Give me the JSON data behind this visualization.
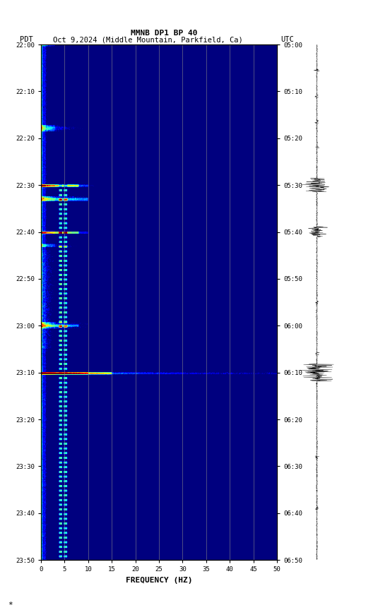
{
  "title_line1": "MMNB DP1 BP 40",
  "title_line2_pdt": "PDT",
  "title_line2_mid": "Oct 9,2024 (Middle Mountain, Parkfield, Ca)",
  "title_line2_utc": "UTC",
  "xlabel": "FREQUENCY (HZ)",
  "freq_min": 0,
  "freq_max": 50,
  "freq_ticks": [
    0,
    5,
    10,
    15,
    20,
    25,
    30,
    35,
    40,
    45,
    50
  ],
  "pdt_ticks": [
    "22:00",
    "22:10",
    "22:20",
    "22:30",
    "22:40",
    "22:50",
    "23:00",
    "23:10",
    "23:20",
    "23:30",
    "23:40",
    "23:50"
  ],
  "utc_ticks": [
    "05:00",
    "05:10",
    "05:20",
    "05:30",
    "05:40",
    "05:50",
    "06:00",
    "06:10",
    "06:20",
    "06:30",
    "06:40",
    "06:50"
  ],
  "background_color": "#ffffff",
  "grid_color": "#808080",
  "colormap": "jet",
  "n_times": 660,
  "n_freqs": 500
}
